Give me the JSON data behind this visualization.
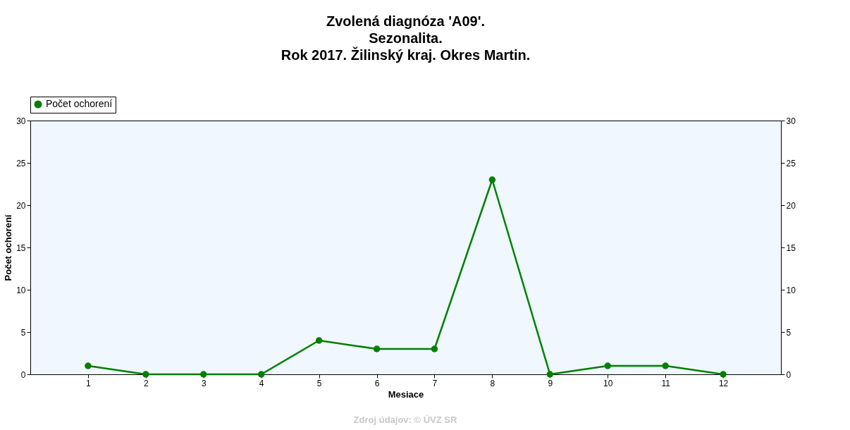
{
  "chart_data": {
    "type": "line",
    "title": "Zvolená diagnóza 'A09'.\nSezonalita.\nRok 2017. Žilinský kraj. Okres Martin.",
    "xlabel": "Mesiace",
    "ylabel": "Počet ochorení",
    "x": [
      1,
      2,
      3,
      4,
      5,
      6,
      7,
      8,
      9,
      10,
      11,
      12
    ],
    "series": [
      {
        "name": "Počet ochorení",
        "color": "#008000",
        "values": [
          1,
          0,
          0,
          0,
          4,
          3,
          3,
          23,
          0,
          1,
          1,
          0
        ]
      }
    ],
    "xlim": [
      0,
      13
    ],
    "xticks": [
      1,
      2,
      3,
      4,
      5,
      6,
      7,
      8,
      9,
      10,
      11,
      12
    ],
    "ylim": [
      0,
      30
    ],
    "yticks": [
      0,
      5,
      10,
      15,
      20,
      25,
      30
    ],
    "y2lim": [
      0,
      30
    ],
    "y2ticks": [
      0,
      5,
      10,
      15,
      20,
      25,
      30
    ],
    "grid": false,
    "legend": "top left",
    "marker": "circle",
    "line_style": "solid",
    "annotations": [
      "Zdroj údajov: © ÚVZ SR"
    ]
  }
}
